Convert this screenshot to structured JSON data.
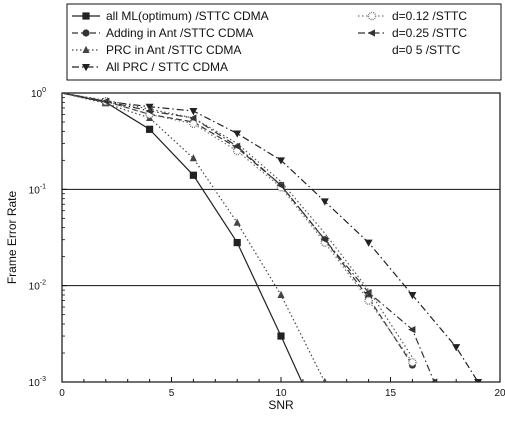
{
  "chart_data": {
    "type": "line",
    "xlabel": "SNR",
    "ylabel": "Frame Error Rate",
    "xlim": [
      0,
      20
    ],
    "ylim": [
      0.001,
      1
    ],
    "yscale": "log",
    "x_ticks": [
      0,
      5,
      10,
      15,
      20
    ],
    "x_tick_labels": [
      "0",
      "5",
      "10",
      "15",
      "20"
    ],
    "y_ticks": [
      0.001,
      0.01,
      0.1,
      1
    ],
    "y_tick_labels": [
      {
        "base": "10",
        "exp": "-3"
      },
      {
        "base": "10",
        "exp": "-2"
      },
      {
        "base": "10",
        "exp": "-1"
      },
      {
        "base": "10",
        "exp": "0"
      }
    ],
    "grid": "horizontal at y = 0.1 and y = 0.01",
    "legend_placement": "above plot",
    "series": [
      {
        "name": "all ML(optimum) /STTC CDMA",
        "marker": "square",
        "color": "#222222",
        "dash": "solid",
        "x": [
          0,
          2,
          4,
          6,
          8,
          10,
          12
        ],
        "y": [
          1,
          0.8,
          0.42,
          0.14,
          0.028,
          0.003,
          0.0003
        ]
      },
      {
        "name": "Adding in Ant /STTC CDMA",
        "marker": "circle",
        "color": "#333333",
        "dash": "dash",
        "x": [
          0,
          2,
          4,
          6,
          8,
          10,
          12,
          14,
          16
        ],
        "y": [
          1,
          0.82,
          0.6,
          0.5,
          0.27,
          0.11,
          0.03,
          0.0075,
          0.0015
        ]
      },
      {
        "name": "PRC in Ant /STTC CDMA",
        "marker": "triangle-up",
        "color": "#444444",
        "dash": "dot",
        "x": [
          0,
          2,
          4,
          6,
          8,
          10,
          12
        ],
        "y": [
          1,
          0.78,
          0.55,
          0.21,
          0.045,
          0.008,
          0.001
        ]
      },
      {
        "name": "All PRC / STTC CDMA",
        "marker": "triangle-down",
        "color": "#222222",
        "dash": "dashdot",
        "x": [
          0,
          2,
          4,
          6,
          8,
          10,
          12,
          14,
          16,
          18,
          19
        ],
        "y": [
          1,
          0.82,
          0.72,
          0.65,
          0.38,
          0.2,
          0.075,
          0.028,
          0.008,
          0.0023,
          0.001
        ]
      },
      {
        "name": "d=0.12 /STTC",
        "marker": "dotted-circle",
        "color": "#777777",
        "dash": "dot",
        "x": [
          0,
          2,
          4,
          6,
          8,
          10,
          12,
          14,
          16
        ],
        "y": [
          1,
          0.82,
          0.6,
          0.48,
          0.25,
          0.105,
          0.028,
          0.007,
          0.0016
        ]
      },
      {
        "name": "d=0.25 /STTC",
        "marker": "triangle-left",
        "color": "#333333",
        "dash": "dashdot",
        "x": [
          0,
          2,
          4,
          6,
          8,
          10,
          12,
          14,
          16,
          17
        ],
        "y": [
          1,
          0.82,
          0.65,
          0.55,
          0.28,
          0.11,
          0.03,
          0.0085,
          0.0035,
          0.001
        ]
      },
      {
        "name": "d=0 5 /STTC",
        "marker": "none",
        "color": "#555555",
        "dash": "dot",
        "x": [
          0,
          2,
          4,
          6,
          8,
          10,
          12,
          14,
          16
        ],
        "y": [
          1,
          0.84,
          0.68,
          0.55,
          0.3,
          0.12,
          0.035,
          0.009,
          0.0018
        ]
      }
    ]
  }
}
